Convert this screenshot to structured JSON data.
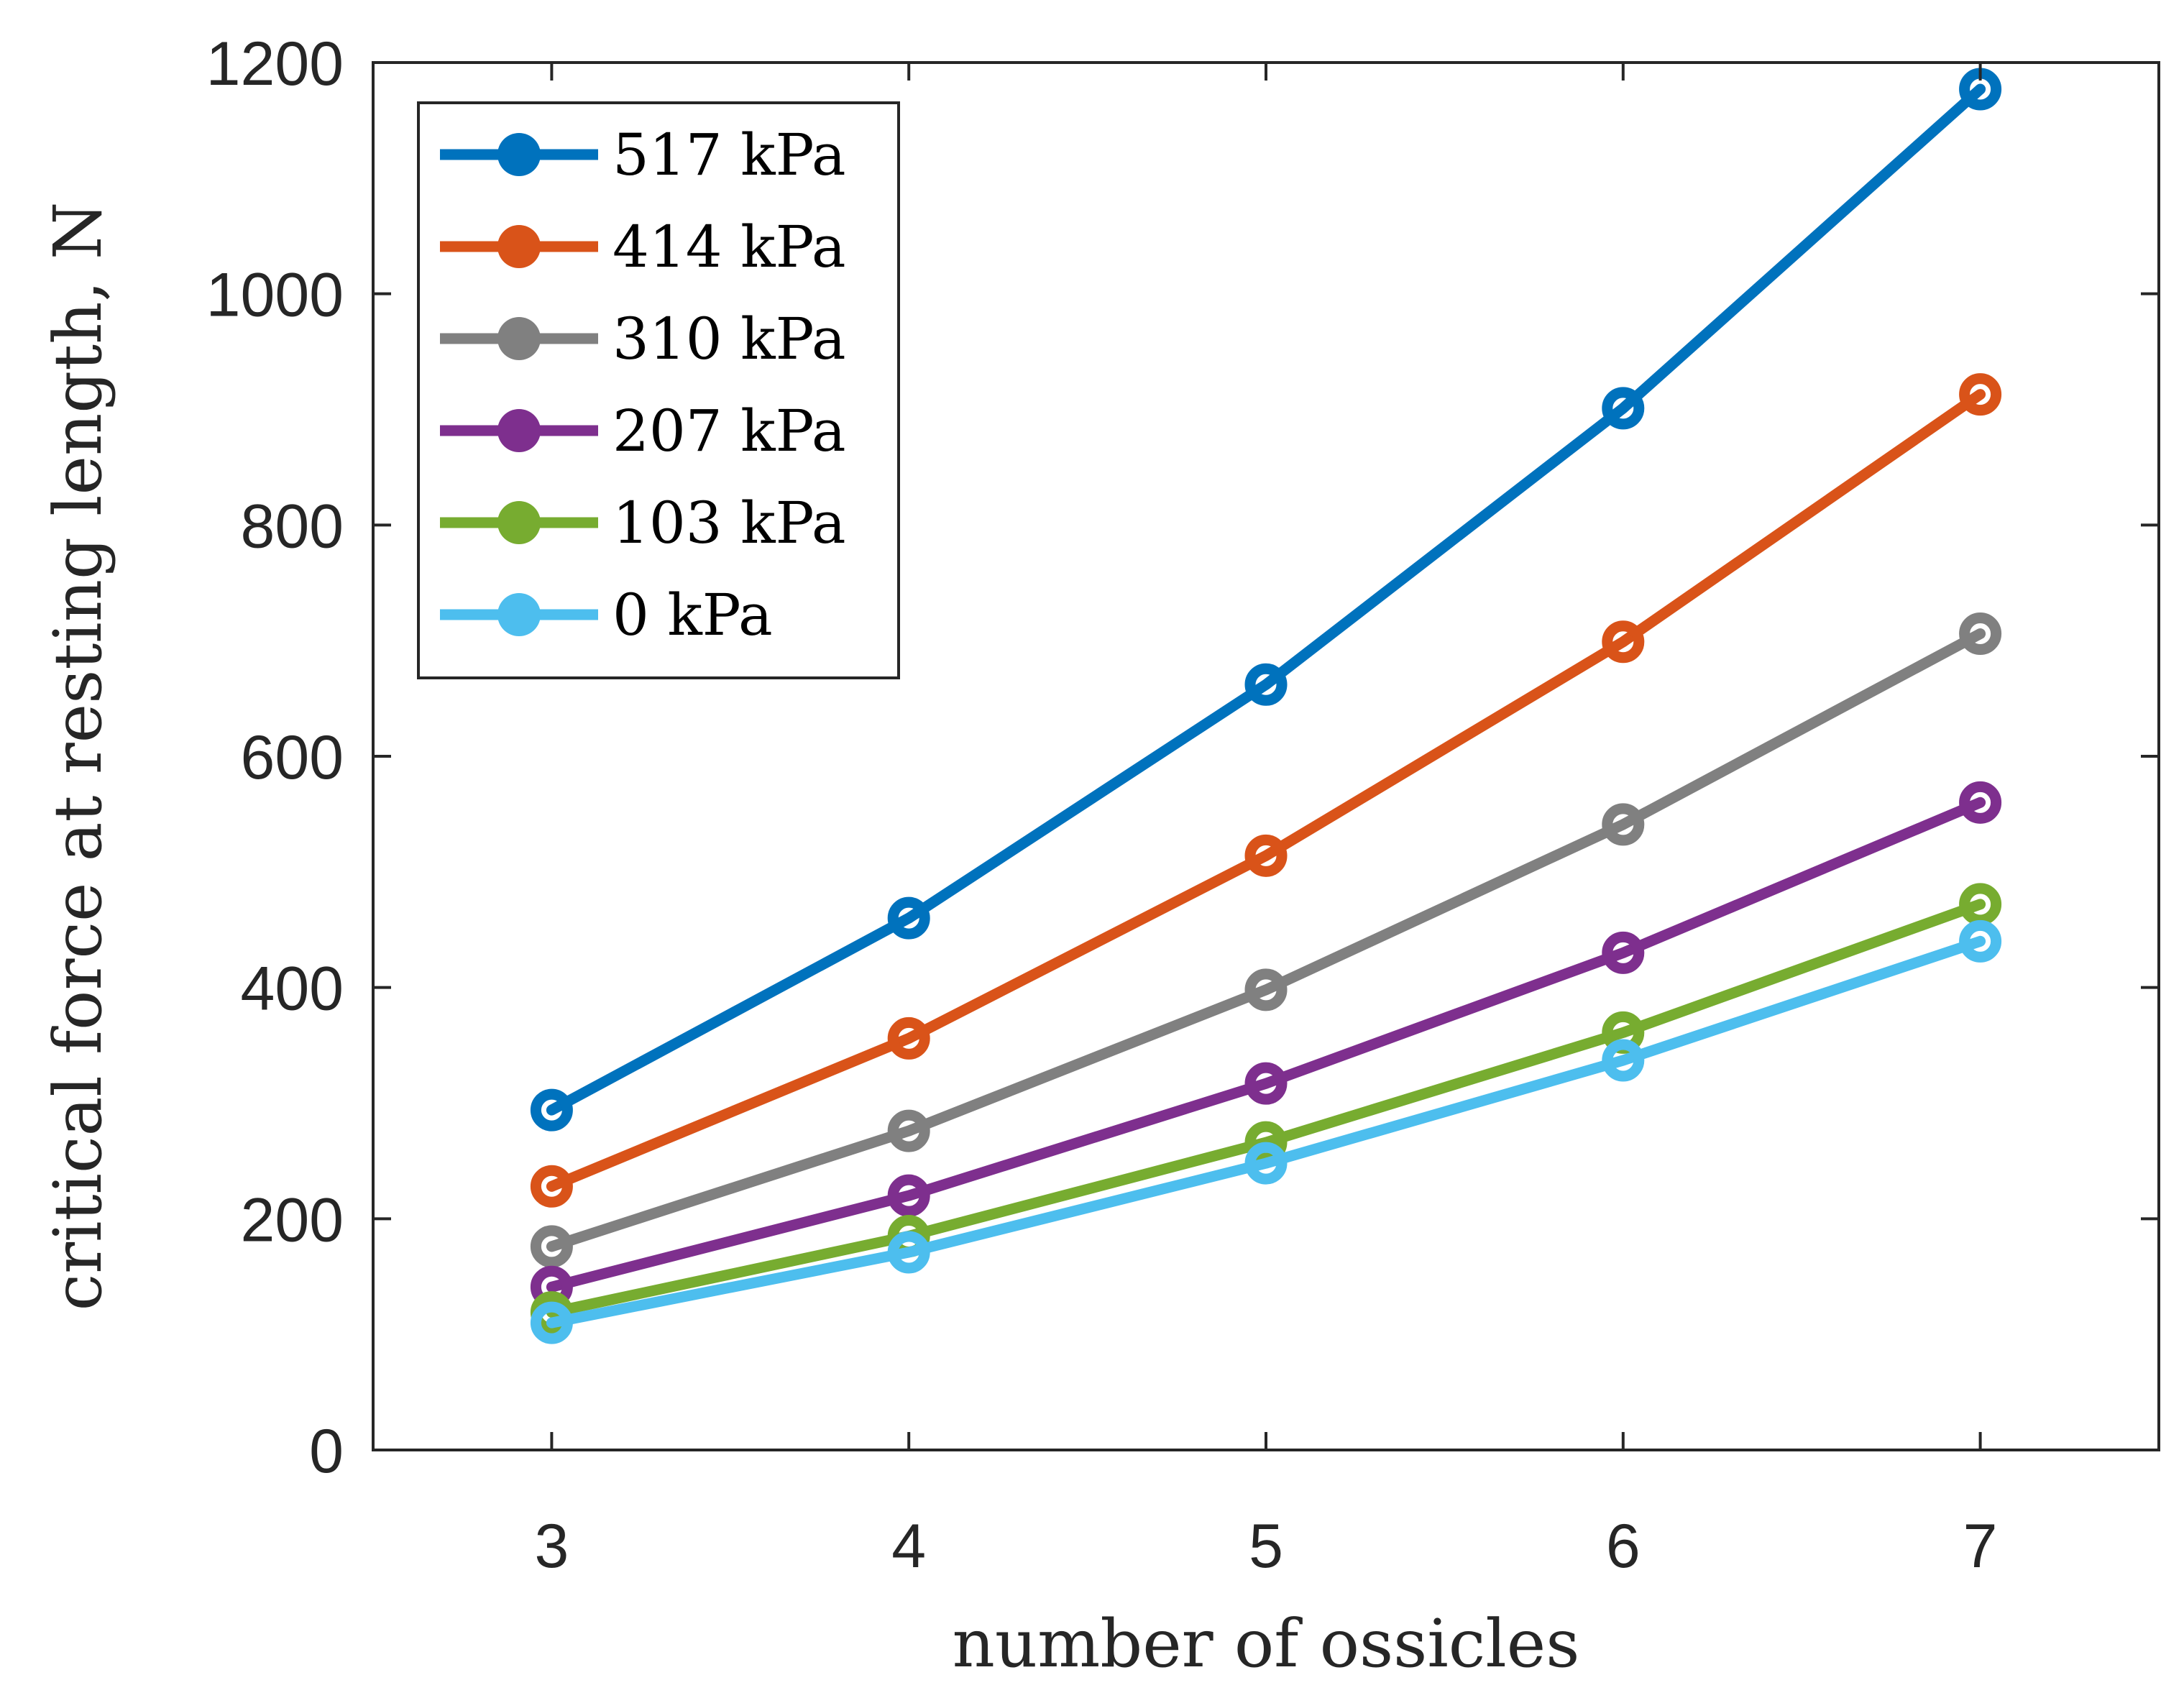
{
  "chart_data": {
    "type": "line",
    "title": "",
    "xlabel": "number of ossicles",
    "ylabel": "critical force at resting length, N",
    "x": [
      3,
      4,
      5,
      6,
      7
    ],
    "xlim": [
      2.5,
      7.5
    ],
    "ylim": [
      0,
      1200
    ],
    "xticks": [
      "3",
      "4",
      "5",
      "6",
      "7"
    ],
    "yticks": [
      "0",
      "200",
      "400",
      "600",
      "800",
      "1000",
      "1200"
    ],
    "grid": false,
    "legend_position": "top-left",
    "marker": "circle",
    "series": [
      {
        "name": "517 kPa",
        "color": "#0072bd",
        "values": [
          294,
          460,
          662,
          901,
          1177
        ]
      },
      {
        "name": "414 kPa",
        "color": "#d95319",
        "values": [
          228,
          356,
          514,
          699,
          913
        ]
      },
      {
        "name": "310 kPa",
        "color": "#808080",
        "values": [
          176,
          276,
          398,
          541,
          706
        ]
      },
      {
        "name": "207 kPa",
        "color": "#7e2f8e",
        "values": [
          141,
          220,
          317,
          430,
          560
        ]
      },
      {
        "name": "103 kPa",
        "color": "#77ac30",
        "values": [
          119,
          185,
          266,
          361,
          472
        ]
      },
      {
        "name": "0 kPa",
        "color": "#4dbeee",
        "values": [
          110,
          171,
          248,
          337,
          440
        ]
      }
    ]
  }
}
